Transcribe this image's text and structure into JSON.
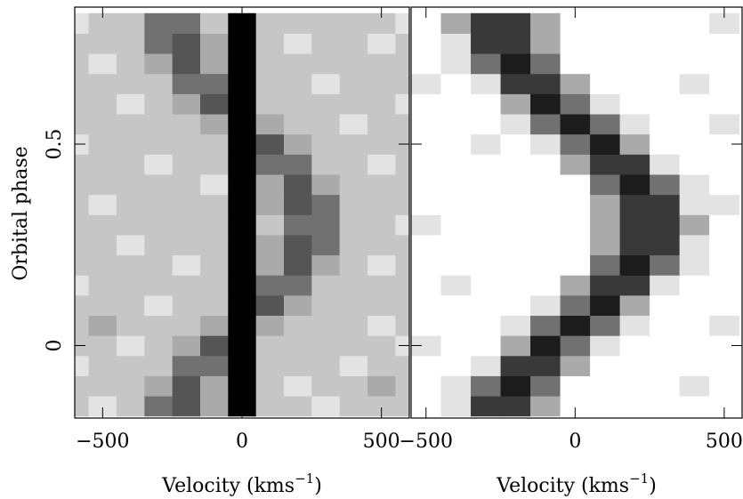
{
  "chart_data": [
    {
      "type": "heatmap",
      "ylabel": "Orbital phase",
      "xlabel": [
        "Velocity (kms",
        "−1",
        ")"
      ],
      "x": [
        -600,
        -500,
        -400,
        -300,
        -200,
        -100,
        0,
        100,
        200,
        300,
        400,
        500,
        600
      ],
      "y": [
        -0.15,
        -0.1,
        -0.05,
        0,
        0.05,
        0.1,
        0.15,
        0.2,
        0.25,
        0.3,
        0.35,
        0.4,
        0.45,
        0.5,
        0.55,
        0.6,
        0.65,
        0.7,
        0.75,
        0.8
      ],
      "values": [
        [
          2,
          1,
          2,
          5,
          6,
          3,
          9,
          2,
          2,
          1,
          2,
          2,
          2
        ],
        [
          2,
          2,
          2,
          3,
          6,
          3,
          9,
          2,
          1,
          2,
          2,
          3,
          2
        ],
        [
          1,
          2,
          2,
          2,
          5,
          5,
          9,
          2,
          2,
          2,
          1,
          2,
          2
        ],
        [
          2,
          2,
          1,
          2,
          3,
          6,
          9,
          2,
          2,
          2,
          2,
          2,
          1
        ],
        [
          2,
          3,
          2,
          2,
          2,
          3,
          9,
          3,
          2,
          2,
          2,
          1,
          2
        ],
        [
          2,
          2,
          2,
          1,
          2,
          2,
          9,
          6,
          3,
          2,
          2,
          2,
          2
        ],
        [
          1,
          2,
          2,
          2,
          2,
          2,
          9,
          5,
          5,
          2,
          2,
          2,
          2
        ],
        [
          2,
          2,
          2,
          2,
          1,
          2,
          9,
          3,
          6,
          3,
          2,
          1,
          2
        ],
        [
          2,
          2,
          1,
          2,
          2,
          2,
          9,
          3,
          6,
          5,
          2,
          2,
          2
        ],
        [
          2,
          2,
          2,
          2,
          2,
          2,
          9,
          2,
          5,
          5,
          2,
          2,
          1
        ],
        [
          2,
          1,
          2,
          2,
          2,
          2,
          9,
          3,
          6,
          5,
          2,
          2,
          2
        ],
        [
          2,
          2,
          2,
          2,
          2,
          1,
          9,
          3,
          6,
          3,
          2,
          2,
          2
        ],
        [
          2,
          2,
          2,
          1,
          2,
          2,
          9,
          5,
          5,
          2,
          2,
          1,
          2
        ],
        [
          1,
          2,
          2,
          2,
          2,
          2,
          9,
          6,
          3,
          2,
          2,
          2,
          2
        ],
        [
          2,
          2,
          2,
          2,
          2,
          3,
          9,
          3,
          2,
          2,
          1,
          2,
          2
        ],
        [
          2,
          2,
          1,
          2,
          3,
          6,
          9,
          2,
          2,
          2,
          2,
          2,
          1
        ],
        [
          2,
          2,
          2,
          2,
          5,
          5,
          9,
          2,
          2,
          1,
          2,
          2,
          2
        ],
        [
          2,
          1,
          2,
          3,
          6,
          3,
          9,
          2,
          2,
          2,
          2,
          2,
          2
        ],
        [
          2,
          2,
          2,
          5,
          6,
          3,
          9,
          2,
          1,
          2,
          2,
          1,
          2
        ],
        [
          1,
          2,
          2,
          5,
          5,
          2,
          9,
          2,
          2,
          2,
          2,
          2,
          1
        ]
      ],
      "zlim": [
        0,
        9
      ],
      "xlim": [
        -600,
        600
      ],
      "ylim": [
        -0.18,
        0.84
      ],
      "xticks": [
        {
          "value": -500,
          "label": "−500"
        },
        0,
        500
      ],
      "yticks": [
        0,
        0.5
      ]
    },
    {
      "type": "heatmap",
      "xlabel": [
        "Velocity (kms",
        "−1",
        ")"
      ],
      "x": [
        -500,
        -400,
        -300,
        -200,
        -100,
        0,
        100,
        200,
        300,
        400,
        500
      ],
      "y": [
        -0.15,
        -0.1,
        -0.05,
        0,
        0.05,
        0.1,
        0.15,
        0.2,
        0.25,
        0.3,
        0.35,
        0.4,
        0.45,
        0.5,
        0.55,
        0.6,
        0.65,
        0.7,
        0.75,
        0.8
      ],
      "values": [
        [
          0,
          1,
          7,
          7,
          3,
          0,
          0,
          0,
          0,
          0,
          0
        ],
        [
          0,
          1,
          5,
          8,
          5,
          0,
          0,
          0,
          0,
          1,
          0
        ],
        [
          0,
          0,
          1,
          7,
          7,
          3,
          0,
          0,
          0,
          0,
          0
        ],
        [
          1,
          0,
          0,
          3,
          8,
          5,
          1,
          0,
          0,
          0,
          0
        ],
        [
          0,
          0,
          0,
          1,
          5,
          8,
          5,
          1,
          0,
          0,
          1
        ],
        [
          0,
          0,
          0,
          0,
          1,
          5,
          8,
          3,
          0,
          0,
          0
        ],
        [
          0,
          1,
          0,
          0,
          0,
          3,
          7,
          7,
          1,
          0,
          0
        ],
        [
          0,
          0,
          0,
          0,
          0,
          0,
          5,
          8,
          5,
          1,
          0
        ],
        [
          0,
          0,
          0,
          0,
          0,
          0,
          3,
          7,
          7,
          1,
          0
        ],
        [
          1,
          0,
          0,
          0,
          0,
          0,
          3,
          7,
          7,
          3,
          0
        ],
        [
          0,
          0,
          0,
          0,
          0,
          0,
          3,
          7,
          7,
          1,
          1
        ],
        [
          0,
          0,
          0,
          0,
          0,
          0,
          5,
          8,
          5,
          1,
          0
        ],
        [
          0,
          0,
          0,
          0,
          0,
          3,
          7,
          7,
          1,
          0,
          0
        ],
        [
          0,
          0,
          1,
          0,
          1,
          5,
          8,
          3,
          0,
          0,
          0
        ],
        [
          0,
          0,
          0,
          1,
          5,
          8,
          5,
          1,
          0,
          0,
          1
        ],
        [
          0,
          0,
          0,
          3,
          8,
          5,
          1,
          0,
          0,
          0,
          0
        ],
        [
          1,
          0,
          1,
          7,
          7,
          3,
          0,
          0,
          0,
          1,
          0
        ],
        [
          0,
          1,
          5,
          8,
          5,
          0,
          0,
          0,
          0,
          0,
          0
        ],
        [
          0,
          1,
          7,
          7,
          3,
          0,
          0,
          0,
          0,
          0,
          0
        ],
        [
          0,
          3,
          7,
          7,
          3,
          0,
          0,
          0,
          0,
          0,
          1
        ]
      ],
      "zlim": [
        0,
        9
      ],
      "xlim": [
        -550,
        560
      ],
      "ylim": [
        -0.18,
        0.84
      ],
      "xticks": [
        {
          "value": -500,
          "label": "−500"
        },
        0,
        500
      ],
      "yticks": [
        0,
        0.5
      ]
    }
  ]
}
